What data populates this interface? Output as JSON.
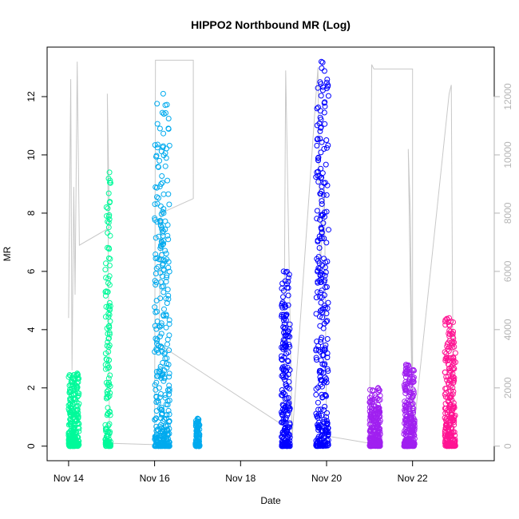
{
  "chart_data": {
    "type": "scatter",
    "title": "HIPPO2 Northbound MR (Log)",
    "xlabel": "Date",
    "ylabel": "MR",
    "xlim_days": [
      13.5,
      23.9
    ],
    "ylim": [
      -0.5,
      13.7
    ],
    "y2lim": [
      -500,
      13700
    ],
    "x_ticks": [
      {
        "label": "Nov 14",
        "value": 14
      },
      {
        "label": "Nov 16",
        "value": 16
      },
      {
        "label": "Nov 18",
        "value": 18
      },
      {
        "label": "Nov 20",
        "value": 20
      },
      {
        "label": "Nov 22",
        "value": 22
      }
    ],
    "y_ticks": [
      0,
      2,
      4,
      6,
      8,
      10,
      12
    ],
    "y2_ticks": [
      0,
      2000,
      4000,
      6000,
      8000,
      10000,
      12000
    ],
    "colors": {
      "axis": "#000000",
      "secondary_axis": "#b5b5b5",
      "altitude_line": "#c8c8c8"
    },
    "series": [
      {
        "color": "#00fa9a",
        "x_range": [
          14.0,
          14.25
        ],
        "max": 2.5,
        "clusters": [
          [
            14.05,
            2.1
          ],
          [
            14.2,
            2.5
          ]
        ]
      },
      {
        "color": "#00fa9a",
        "x_range": [
          14.85,
          14.98
        ],
        "max": 9.4,
        "clusters": [
          [
            14.92,
            5.6
          ],
          [
            14.95,
            9.4
          ]
        ]
      },
      {
        "color": "#00aaee",
        "x_range": [
          16.0,
          16.35
        ],
        "max": 12.1,
        "clusters": [
          [
            16.15,
            9.0
          ],
          [
            16.2,
            12.1
          ]
        ]
      },
      {
        "color": "#00aaee",
        "x_range": [
          16.95,
          17.05
        ],
        "max": 0.95,
        "clusters": [
          [
            17.0,
            0.95
          ]
        ]
      },
      {
        "color": "#0000ff",
        "x_range": [
          18.95,
          19.15
        ],
        "max": 6.0,
        "clusters": [
          [
            19.05,
            4.8
          ],
          [
            19.0,
            6.0
          ]
        ]
      },
      {
        "color": "#0000ff",
        "x_range": [
          19.75,
          20.05
        ],
        "max": 13.2,
        "clusters": [
          [
            19.85,
            12.5
          ],
          [
            19.88,
            13.2
          ]
        ]
      },
      {
        "color": "#a020f0",
        "x_range": [
          21.0,
          21.25
        ],
        "max": 2.0,
        "clusters": [
          [
            21.2,
            2.0
          ]
        ]
      },
      {
        "color": "#a020f0",
        "x_range": [
          21.8,
          22.05
        ],
        "max": 2.8,
        "clusters": [
          [
            21.85,
            2.8
          ],
          [
            22.0,
            1.3
          ]
        ]
      },
      {
        "color": "#ff1493",
        "x_range": [
          22.75,
          23.0
        ],
        "max": 4.4,
        "clusters": [
          [
            22.85,
            4.4
          ],
          [
            22.95,
            3.7
          ]
        ]
      }
    ],
    "altitude_path": [
      [
        14.0,
        4.4
      ],
      [
        14.05,
        12.6
      ],
      [
        14.08,
        2.6
      ],
      [
        14.12,
        8.9
      ],
      [
        14.15,
        5.2
      ],
      [
        14.2,
        13.2
      ],
      [
        14.25,
        6.9
      ],
      [
        14.95,
        7.5
      ],
      [
        14.9,
        12.1
      ],
      [
        14.95,
        0.1
      ],
      [
        16.0,
        0.05
      ],
      [
        16.02,
        13.25
      ],
      [
        16.25,
        13.25
      ],
      [
        16.9,
        13.25
      ],
      [
        16.9,
        8.5
      ],
      [
        16.15,
        8.0
      ],
      [
        16.1,
        3.5
      ],
      [
        19.0,
        0.7
      ],
      [
        19.05,
        12.9
      ],
      [
        19.2,
        0.3
      ],
      [
        19.8,
        13.0
      ],
      [
        19.85,
        6.0
      ],
      [
        19.95,
        8.9
      ],
      [
        20.0,
        0.35
      ],
      [
        21.0,
        0.1
      ],
      [
        21.05,
        13.1
      ],
      [
        21.1,
        12.95
      ],
      [
        22.0,
        12.95
      ],
      [
        22.0,
        0.5
      ],
      [
        21.9,
        10.2
      ],
      [
        21.95,
        7.9
      ],
      [
        22.0,
        0.15
      ],
      [
        22.85,
        12.1
      ],
      [
        22.9,
        12.4
      ],
      [
        22.95,
        0.15
      ]
    ]
  }
}
